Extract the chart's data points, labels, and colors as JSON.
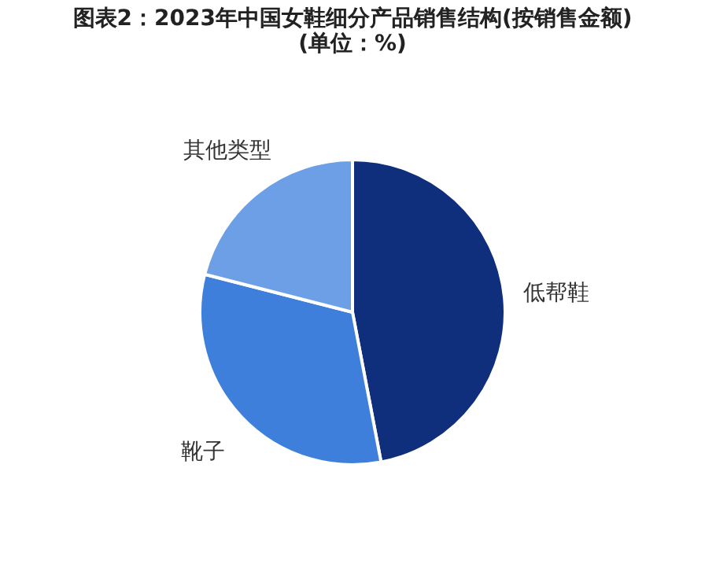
{
  "chart_data": {
    "type": "pie",
    "title": "图表2：2023年中国女鞋细分产品销售结构(按销售金额)(单位：%)",
    "categories": [
      "低帮鞋",
      "靴子",
      "其他类型"
    ],
    "values": [
      47,
      32,
      21
    ],
    "colors": [
      "#0f2f7d",
      "#3f7fdc",
      "#6c9fe6"
    ],
    "legend": false
  }
}
